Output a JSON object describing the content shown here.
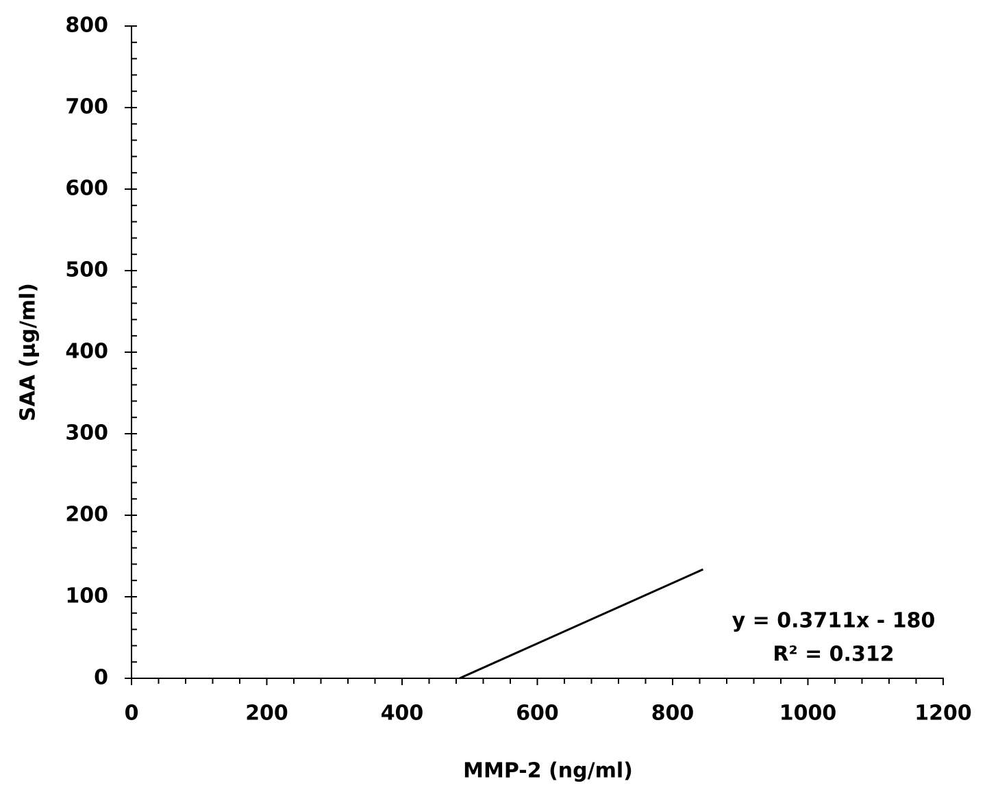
{
  "chart_data": {
    "type": "line",
    "x_label": "MMP-2 (ng/ml)",
    "y_label": "SAA (µg/ml)",
    "x": [
      485,
      845
    ],
    "series": [
      {
        "values": [
          0,
          133.6
        ],
        "color": "#000000"
      }
    ],
    "annotations": [
      "y = 0.3711x - 180",
      "R² = 0.312"
    ],
    "xlim": [
      0,
      1200
    ],
    "xticks": [
      0,
      200,
      400,
      600,
      800,
      1000,
      1200
    ],
    "ylim": [
      0,
      800
    ],
    "yticks": [
      0,
      100,
      200,
      300,
      400,
      500,
      600,
      700,
      800
    ],
    "xminorticks": [
      40,
      80,
      120,
      160,
      240,
      280,
      320,
      360,
      440,
      480,
      520,
      560,
      640,
      680,
      720,
      760,
      840,
      880,
      920,
      960,
      1040,
      1080,
      1120,
      1160
    ],
    "yminorticks": [
      20,
      40,
      60,
      80,
      120,
      140,
      160,
      180,
      220,
      240,
      260,
      280,
      320,
      340,
      360,
      380,
      420,
      440,
      460,
      480,
      520,
      540,
      560,
      580,
      620,
      640,
      660,
      680,
      720,
      740,
      760,
      780
    ],
    "grid": false
  }
}
